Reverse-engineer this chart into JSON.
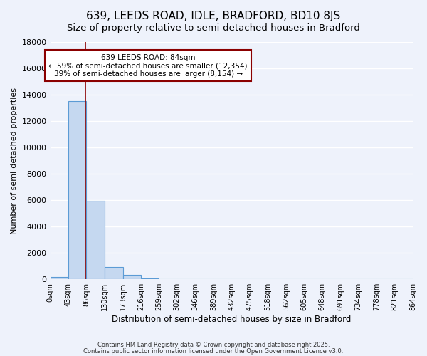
{
  "title": "639, LEEDS ROAD, IDLE, BRADFORD, BD10 8JS",
  "subtitle": "Size of property relative to semi-detached houses in Bradford",
  "xlabel": "Distribution of semi-detached houses by size in Bradford",
  "ylabel": "Number of semi-detached properties",
  "bar_values": [
    200,
    13500,
    5950,
    950,
    330,
    80,
    0,
    0,
    0,
    0,
    0,
    0,
    0,
    0,
    0,
    0,
    0,
    0,
    0,
    0
  ],
  "bin_edges": [
    0,
    43,
    86,
    130,
    173,
    216,
    259,
    302,
    346,
    389,
    432,
    475,
    518,
    562,
    605,
    648,
    691,
    734,
    778,
    821,
    864
  ],
  "tick_labels": [
    "0sqm",
    "43sqm",
    "86sqm",
    "130sqm",
    "173sqm",
    "216sqm",
    "259sqm",
    "302sqm",
    "346sqm",
    "389sqm",
    "432sqm",
    "475sqm",
    "518sqm",
    "562sqm",
    "605sqm",
    "648sqm",
    "691sqm",
    "734sqm",
    "778sqm",
    "821sqm",
    "864sqm"
  ],
  "bar_color": "#c5d8f0",
  "bar_edge_color": "#5b9bd5",
  "vline_x": 84,
  "vline_color": "#8b0000",
  "ylim": [
    0,
    18000
  ],
  "yticks": [
    0,
    2000,
    4000,
    6000,
    8000,
    10000,
    12000,
    14000,
    16000,
    18000
  ],
  "annotation_title": "639 LEEDS ROAD: 84sqm",
  "annotation_line1": "← 59% of semi-detached houses are smaller (12,354)",
  "annotation_line2": "39% of semi-detached houses are larger (8,154) →",
  "annotation_box_color": "#ffffff",
  "annotation_box_edge": "#8b0000",
  "footer1": "Contains HM Land Registry data © Crown copyright and database right 2025.",
  "footer2": "Contains public sector information licensed under the Open Government Licence v3.0.",
  "bg_color": "#eef2fb",
  "grid_color": "#ffffff",
  "title_fontsize": 11,
  "subtitle_fontsize": 9.5
}
